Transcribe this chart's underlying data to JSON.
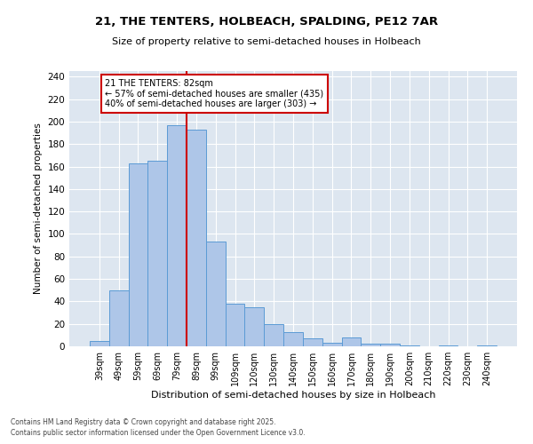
{
  "title1": "21, THE TENTERS, HOLBEACH, SPALDING, PE12 7AR",
  "title2": "Size of property relative to semi-detached houses in Holbeach",
  "xlabel": "Distribution of semi-detached houses by size in Holbeach",
  "ylabel": "Number of semi-detached properties",
  "categories": [
    "39sqm",
    "49sqm",
    "59sqm",
    "69sqm",
    "79sqm",
    "89sqm",
    "99sqm",
    "109sqm",
    "120sqm",
    "130sqm",
    "140sqm",
    "150sqm",
    "160sqm",
    "170sqm",
    "180sqm",
    "190sqm",
    "200sqm",
    "210sqm",
    "220sqm",
    "230sqm",
    "240sqm"
  ],
  "values": [
    5,
    50,
    163,
    165,
    197,
    193,
    93,
    38,
    35,
    20,
    13,
    7,
    3,
    8,
    2,
    2,
    1,
    0,
    1,
    0,
    1
  ],
  "bar_color": "#aec6e8",
  "bar_edge_color": "#5b9bd5",
  "background_color": "#dde6f0",
  "annotation_box_color": "#cc0000",
  "property_line_color": "#cc0000",
  "property_line_x": 4,
  "annotation_text": "21 THE TENTERS: 82sqm\n← 57% of semi-detached houses are smaller (435)\n40% of semi-detached houses are larger (303) →",
  "footer1": "Contains HM Land Registry data © Crown copyright and database right 2025.",
  "footer2": "Contains public sector information licensed under the Open Government Licence v3.0.",
  "ylim": [
    0,
    245
  ],
  "yticks": [
    0,
    20,
    40,
    60,
    80,
    100,
    120,
    140,
    160,
    180,
    200,
    220,
    240
  ]
}
